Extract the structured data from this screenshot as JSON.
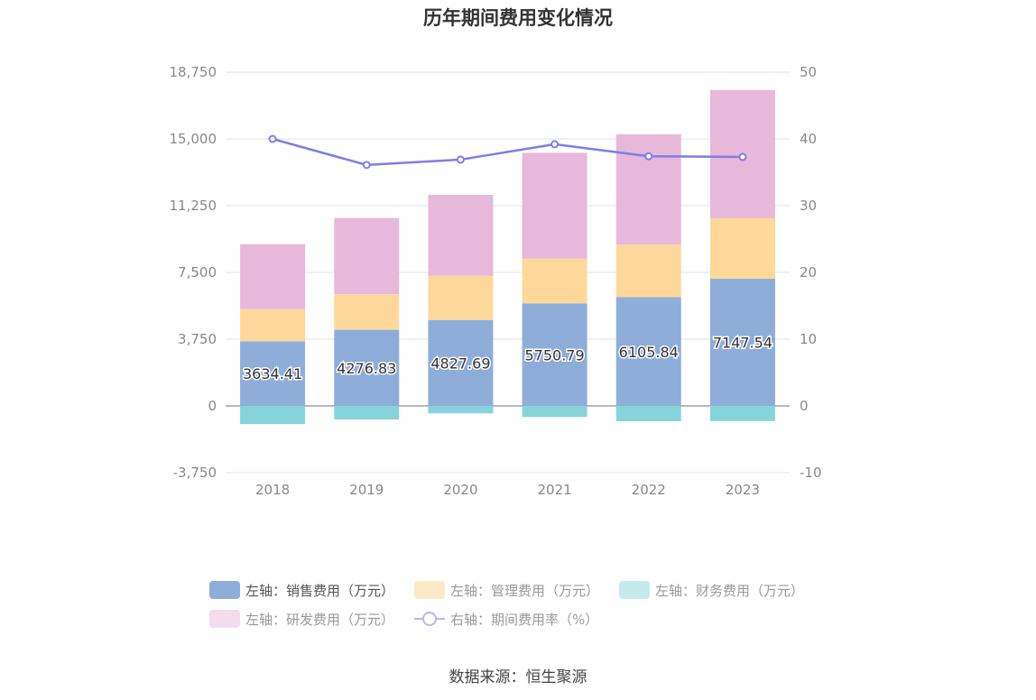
{
  "title": "历年期间费用变化情况",
  "source": "数据来源：恒生聚源",
  "chart_data": {
    "type": "bar",
    "stacked": true,
    "categories": [
      "2018",
      "2019",
      "2020",
      "2021",
      "2022",
      "2023"
    ],
    "left_axis": {
      "min": -3750,
      "max": 18750,
      "ticks": [
        -3750,
        0,
        3750,
        7500,
        11250,
        15000,
        18750
      ],
      "tick_labels": [
        "-3,750",
        "0",
        "3,750",
        "7,500",
        "11,250",
        "15,000",
        "18,750"
      ]
    },
    "right_axis": {
      "min": -10,
      "max": 50,
      "ticks": [
        -10,
        0,
        10,
        20,
        30,
        40,
        50
      ],
      "tick_labels": [
        "-10",
        "0",
        "10",
        "20",
        "30",
        "40",
        "50"
      ]
    },
    "series": [
      {
        "name": "左轴：销售费用（万元）",
        "kind": "bar",
        "color": "#8eadd9",
        "values": [
          3634.41,
          4276.83,
          4827.69,
          5750.79,
          6105.84,
          7147.54
        ],
        "value_labels": [
          "3634.41",
          "4276.83",
          "4827.69",
          "5750.79",
          "6105.84",
          "7147.54"
        ]
      },
      {
        "name": "左轴：管理费用（万元）",
        "kind": "bar",
        "color": "#fdd89a",
        "values": [
          1800,
          2000,
          2480,
          2520,
          2950,
          3400
        ]
      },
      {
        "name": "左轴：财务费用（万元）",
        "kind": "bar",
        "color": "#86d4d9",
        "values": [
          -1020,
          -760,
          -420,
          -620,
          -860,
          -850
        ]
      },
      {
        "name": "左轴：研发费用（万元）",
        "kind": "bar",
        "color": "#e8b8da",
        "values": [
          3650,
          4280,
          4550,
          5950,
          6200,
          7200
        ]
      },
      {
        "name": "右轴：期间费用率（%）",
        "kind": "line",
        "axis": "right",
        "color": "#7b7ee8",
        "values": [
          40.0,
          36.1,
          36.9,
          39.2,
          37.4,
          37.3
        ]
      }
    ]
  },
  "legend": [
    {
      "label": "左轴：销售费用（万元）",
      "color": "#8eadd9",
      "dim": false
    },
    {
      "label": "左轴：管理费用（万元）",
      "color": "#fde9c7",
      "dim": true
    },
    {
      "label": "左轴：财务费用（万元）",
      "color": "#c5eaec",
      "dim": true
    },
    {
      "label": "左轴：研发费用（万元）",
      "color": "#f3dcec",
      "dim": true
    },
    {
      "label": "右轴：期间费用率（%）",
      "color": "#b7b8f3",
      "dim": true
    }
  ]
}
